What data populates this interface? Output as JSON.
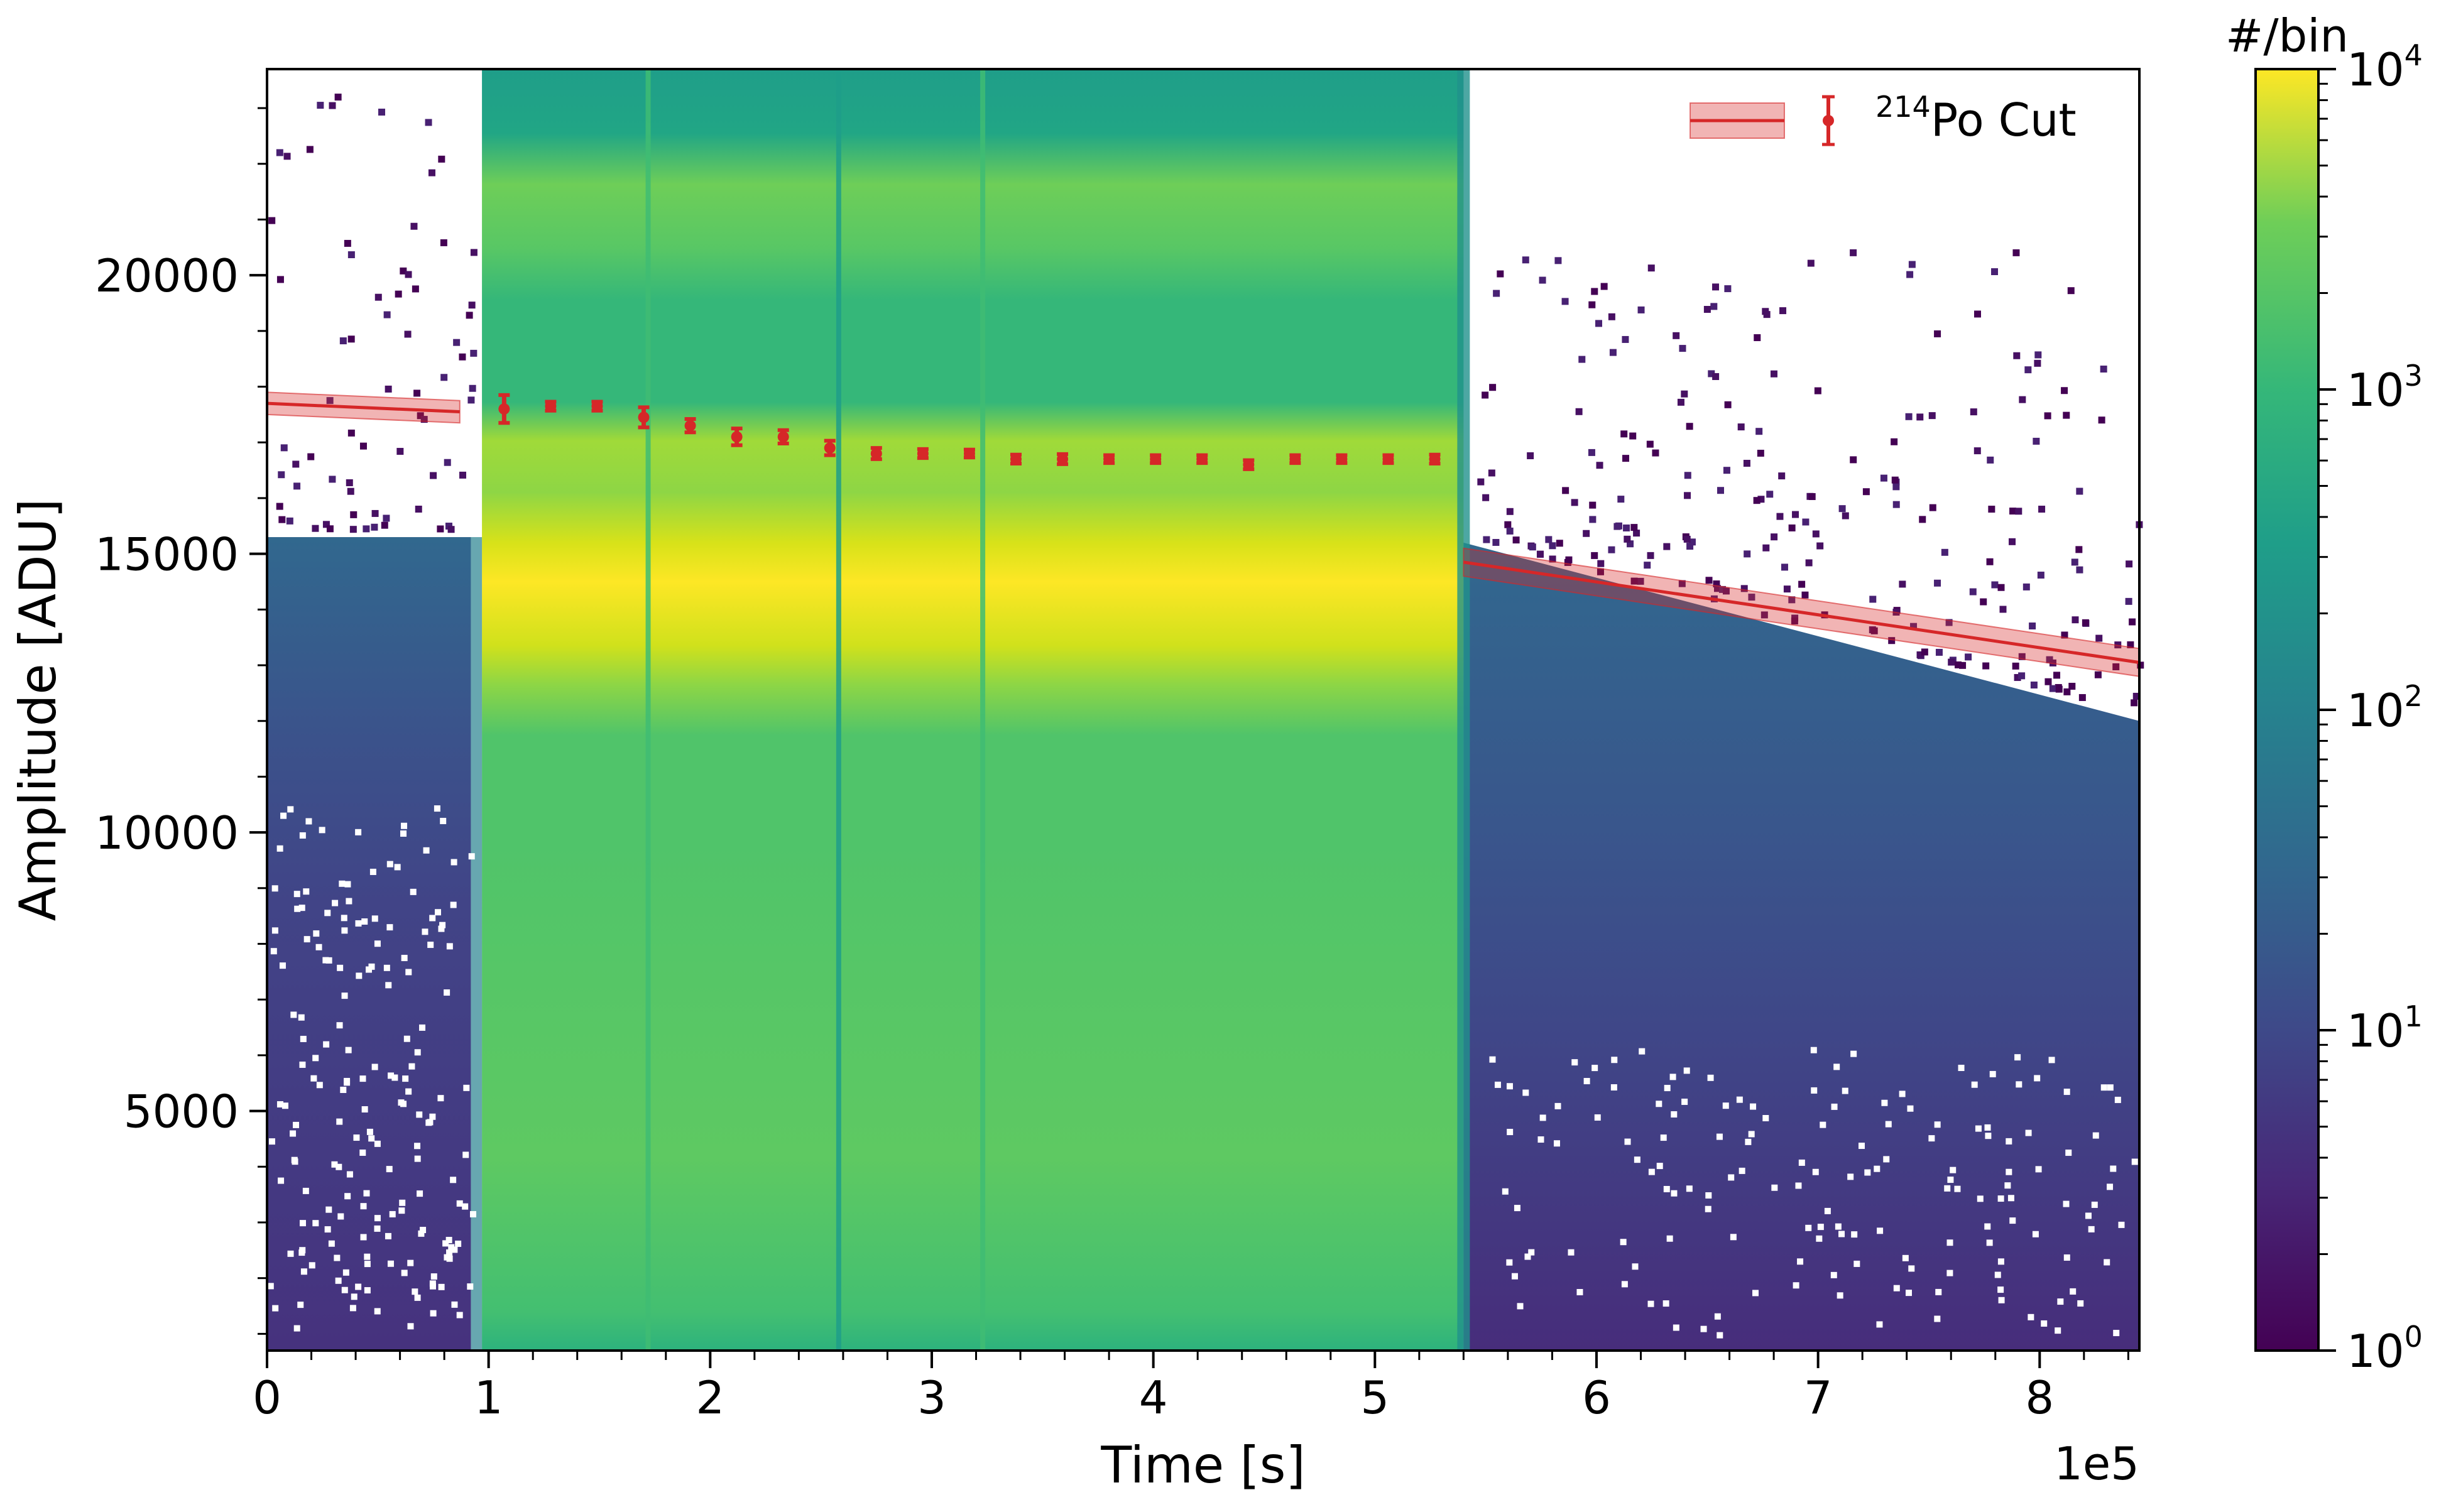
{
  "chart_data": {
    "type": "heatmap",
    "xlabel": "Time [s]",
    "ylabel": "Amplitude [ADU]",
    "x_offset_label": "1e5",
    "xlim": [
      0,
      845000
    ],
    "ylim": [
      700,
      23700
    ],
    "x_ticks": [
      0,
      100000,
      200000,
      300000,
      400000,
      500000,
      600000,
      700000,
      800000
    ],
    "x_tick_labels": [
      "0",
      "1",
      "2",
      "3",
      "4",
      "5",
      "6",
      "7",
      "8"
    ],
    "y_ticks": [
      5000,
      10000,
      15000,
      20000
    ],
    "y_tick_labels": [
      "5000",
      "10000",
      "15000",
      "20000"
    ],
    "colorbar": {
      "label": "#/bin",
      "scale": "log",
      "range": [
        1,
        10000
      ],
      "colormap": "viridis",
      "ticks": [
        {
          "base": "10",
          "exp": "0",
          "value": 1
        },
        {
          "base": "10",
          "exp": "1",
          "value": 10
        },
        {
          "base": "10",
          "exp": "2",
          "value": 100
        },
        {
          "base": "10",
          "exp": "3",
          "value": 1000
        },
        {
          "base": "10",
          "exp": "4",
          "value": 10000
        }
      ]
    },
    "legend": {
      "placement": "top-right",
      "label_sup": "214",
      "label_main": "Po Cut"
    },
    "po214_points": {
      "x": [
        107000,
        128000,
        149000,
        170000,
        191000,
        212000,
        233000,
        254000,
        275000,
        296000,
        317000,
        338000,
        359000,
        380000,
        401000,
        422000,
        443000,
        464000,
        485000,
        506000,
        527000
      ],
      "y": [
        17600,
        17650,
        17650,
        17450,
        17300,
        17100,
        17100,
        16900,
        16800,
        16800,
        16800,
        16700,
        16700,
        16700,
        16700,
        16700,
        16600,
        16700,
        16700,
        16700,
        16700
      ],
      "err": [
        250,
        80,
        80,
        180,
        120,
        150,
        120,
        130,
        100,
        80,
        70,
        80,
        90,
        70,
        70,
        70,
        80,
        70,
        70,
        70,
        80
      ],
      "color": "#d62728"
    },
    "fit_bands": [
      {
        "x": [
          0,
          87000
        ],
        "y": [
          17700,
          17550
        ],
        "band": 200,
        "color": "#d62728"
      },
      {
        "x": [
          540000,
          845000
        ],
        "y": [
          14850,
          13050
        ],
        "band": 250,
        "color": "#d62728"
      }
    ],
    "regions": [
      {
        "x": [
          0,
          92000
        ],
        "y_top": 15300,
        "level": "low"
      },
      {
        "x": [
          97000,
          540000
        ],
        "y_top": 23700,
        "level": "high"
      },
      {
        "x": [
          540000,
          845000
        ],
        "y_top_start": 15200,
        "y_top_end": 12000,
        "level": "low"
      }
    ],
    "bands": [
      {
        "name": "main",
        "y_center": 14700,
        "level": 10000
      },
      {
        "name": "upper1",
        "y_center": 16500,
        "level": 3000
      },
      {
        "name": "upper2",
        "y_center": 20700,
        "level": 1500
      }
    ]
  }
}
